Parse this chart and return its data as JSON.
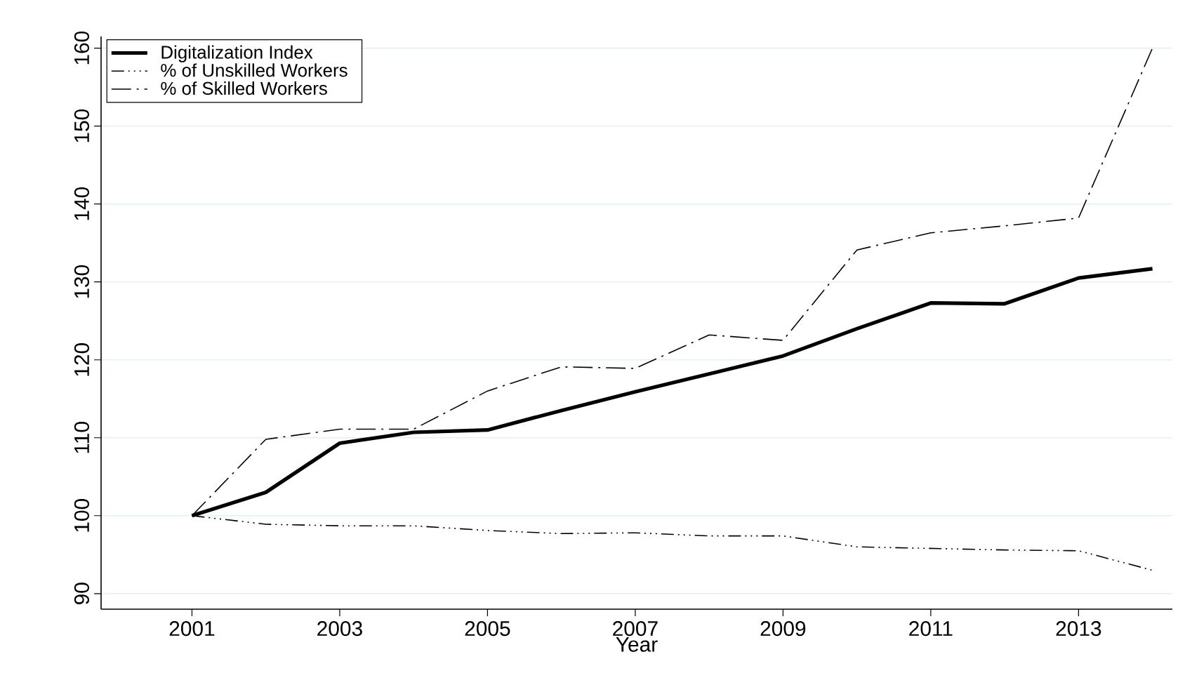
{
  "chart_data": {
    "type": "line",
    "xlabel": "Year",
    "x": [
      2001,
      2002,
      2003,
      2004,
      2005,
      2006,
      2007,
      2008,
      2009,
      2010,
      2011,
      2012,
      2013,
      2014
    ],
    "series": [
      {
        "name": "Digitalization Index",
        "color": "#000000",
        "line_style": "solid",
        "values": [
          100,
          103,
          109.3,
          110.7,
          111,
          113.5,
          115.9,
          118.2,
          120.5,
          124,
          127.3,
          127.2,
          130.5,
          131.7
        ]
      },
      {
        "name": "% of Unskilled Workers",
        "color": "#000000",
        "line_style": "dotted",
        "values": [
          100,
          98.9,
          98.7,
          98.7,
          98.1,
          97.7,
          97.8,
          97.4,
          97.4,
          96.0,
          95.8,
          95.6,
          95.5,
          93.0
        ]
      },
      {
        "name": "% of Skilled Workers",
        "color": "#000000",
        "line_style": "dashed",
        "values": [
          100,
          109.8,
          111.1,
          111.1,
          116,
          119.1,
          118.9,
          123.2,
          122.5,
          134.1,
          136.3,
          137.2,
          138.2,
          160
        ]
      }
    ],
    "xlim": [
      1999.77,
      2014.27
    ],
    "ylim": [
      88,
      161.5
    ],
    "xticks": [
      2001,
      2003,
      2005,
      2007,
      2009,
      2011,
      2013
    ],
    "yticks": [
      90,
      100,
      110,
      120,
      130,
      140,
      150,
      160
    ],
    "grid": "y",
    "legend": "top left",
    "marker": "none"
  }
}
